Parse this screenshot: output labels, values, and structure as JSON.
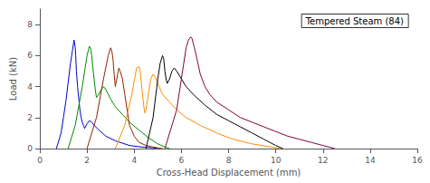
{
  "chart_data": {
    "type": "line",
    "title": "Tempered Steam (84)",
    "xlabel": "Cross-Head Displacement (mm)",
    "ylabel": "Load (kN)",
    "xlim": [
      0,
      16
    ],
    "ylim": [
      0,
      9
    ],
    "xticks": [
      0,
      2,
      4,
      6,
      8,
      10,
      12,
      14,
      16
    ],
    "yticks": [
      0,
      2,
      4,
      6,
      8
    ],
    "grid": false,
    "series": [
      {
        "color": "#0000cc",
        "x": [
          0.7,
          0.9,
          1.1,
          1.3,
          1.45,
          1.5,
          1.52,
          1.55,
          1.6,
          1.65,
          1.7,
          1.75,
          1.8,
          1.85,
          1.9,
          2.0,
          2.1,
          2.2,
          2.3,
          2.5,
          2.8,
          3.2,
          3.8,
          4.3,
          4.8,
          5.0
        ],
        "values": [
          0.0,
          1.0,
          3.0,
          5.5,
          7.0,
          6.5,
          6.0,
          5.0,
          4.0,
          3.2,
          2.5,
          2.0,
          1.7,
          1.5,
          1.3,
          1.6,
          1.8,
          1.7,
          1.5,
          1.2,
          0.8,
          0.5,
          0.2,
          0.1,
          0.05,
          0.0
        ]
      },
      {
        "color": "#008800",
        "x": [
          1.2,
          1.5,
          1.8,
          2.0,
          2.1,
          2.15,
          2.2,
          2.25,
          2.3,
          2.35,
          2.4,
          2.5,
          2.6,
          2.7,
          2.8,
          3.0,
          3.2,
          3.5,
          3.8,
          4.2,
          4.6,
          5.0,
          5.3,
          5.5
        ],
        "values": [
          0.0,
          1.5,
          4.0,
          6.0,
          6.6,
          6.5,
          6.0,
          5.2,
          4.5,
          3.8,
          3.3,
          3.5,
          3.8,
          4.0,
          3.8,
          3.2,
          2.7,
          2.2,
          1.7,
          1.2,
          0.7,
          0.3,
          0.1,
          0.0
        ]
      },
      {
        "color": "#8B2500",
        "x": [
          2.0,
          2.4,
          2.7,
          2.9,
          3.0,
          3.05,
          3.1,
          3.15,
          3.2,
          3.3,
          3.35,
          3.4,
          3.5,
          3.6,
          3.7,
          3.8,
          4.0,
          4.2,
          4.5,
          4.8,
          5.0,
          5.2
        ],
        "values": [
          0.0,
          2.0,
          4.5,
          6.0,
          6.5,
          6.3,
          5.8,
          4.8,
          4.0,
          4.8,
          5.2,
          5.0,
          4.5,
          3.5,
          2.5,
          1.5,
          0.8,
          0.4,
          0.2,
          0.1,
          0.05,
          0.0
        ]
      },
      {
        "color": "#FF8C00",
        "x": [
          3.2,
          3.6,
          3.9,
          4.1,
          4.2,
          4.25,
          4.3,
          4.35,
          4.4,
          4.45,
          4.5,
          4.6,
          4.7,
          4.8,
          4.9,
          5.0,
          5.2,
          5.5,
          5.8,
          6.2,
          6.8,
          7.5,
          8.2,
          9.0,
          9.8,
          10.2
        ],
        "values": [
          0.0,
          1.5,
          3.5,
          5.2,
          5.3,
          5.0,
          4.3,
          3.5,
          2.8,
          2.3,
          2.5,
          3.5,
          4.5,
          4.8,
          4.6,
          4.2,
          3.5,
          3.0,
          2.5,
          2.0,
          1.5,
          1.0,
          0.6,
          0.3,
          0.1,
          0.0
        ]
      },
      {
        "color": "#000000",
        "x": [
          4.5,
          4.8,
          5.0,
          5.1,
          5.2,
          5.25,
          5.3,
          5.35,
          5.4,
          5.5,
          5.6,
          5.7,
          5.8,
          6.0,
          6.2,
          6.5,
          7.0,
          7.5,
          8.0,
          8.5,
          9.0,
          9.5,
          10.0,
          10.3
        ],
        "values": [
          0.0,
          2.0,
          4.5,
          5.5,
          6.0,
          5.8,
          5.0,
          4.5,
          4.2,
          4.5,
          5.0,
          5.2,
          5.0,
          4.5,
          4.0,
          3.5,
          2.8,
          2.2,
          1.8,
          1.4,
          1.0,
          0.6,
          0.2,
          0.0
        ]
      },
      {
        "color": "#800040",
        "x": [
          5.3,
          5.8,
          6.0,
          6.2,
          6.3,
          6.4,
          6.45,
          6.5,
          6.55,
          6.6,
          6.7,
          6.8,
          7.0,
          7.2,
          7.5,
          8.0,
          8.5,
          9.0,
          9.5,
          10.0,
          10.5,
          11.0,
          11.5,
          12.0,
          12.5
        ],
        "values": [
          0.0,
          2.5,
          4.5,
          6.5,
          7.0,
          7.2,
          7.1,
          6.8,
          6.5,
          6.2,
          5.5,
          4.8,
          4.0,
          3.5,
          3.0,
          2.5,
          2.0,
          1.7,
          1.4,
          1.1,
          0.8,
          0.6,
          0.4,
          0.2,
          0.0
        ]
      }
    ]
  }
}
